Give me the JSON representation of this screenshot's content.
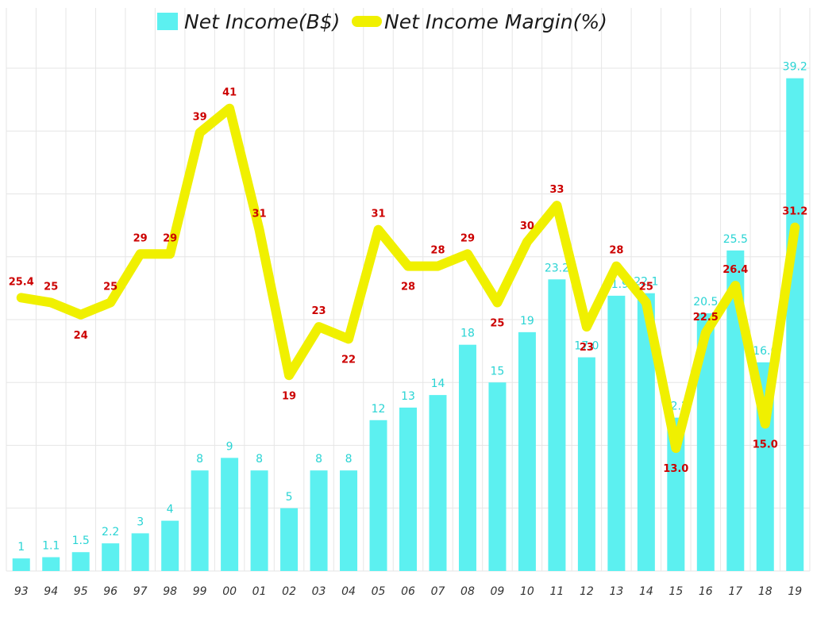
{
  "chart_data": {
    "type": "bar",
    "categories": [
      "93",
      "94",
      "95",
      "96",
      "97",
      "98",
      "99",
      "00",
      "01",
      "02",
      "03",
      "04",
      "05",
      "06",
      "07",
      "08",
      "09",
      "10",
      "11",
      "12",
      "13",
      "14",
      "15",
      "16",
      "17",
      "18",
      "19"
    ],
    "series": [
      {
        "name": "Net Income(B$)",
        "type": "bar",
        "axis": "left",
        "color": "#5cf0f0",
        "values": [
          1,
          1.1,
          1.5,
          2.2,
          3,
          4,
          8,
          9,
          8,
          5,
          8,
          8,
          12,
          13,
          14,
          18,
          15,
          19,
          23.2,
          17.0,
          21.9,
          22.1,
          12.2,
          20.5,
          25.5,
          16.6,
          39.2
        ],
        "labels": [
          "1",
          "1.1",
          "1.5",
          "2.2",
          "3",
          "4",
          "8",
          "9",
          "8",
          "5",
          "8",
          "8",
          "12",
          "13",
          "14",
          "18",
          "15",
          "19",
          "23.2",
          "17.0",
          "21.9",
          "22.1",
          "12.2",
          "20.5",
          "25.5",
          "16.6",
          "39.2"
        ]
      },
      {
        "name": "Net Income Margin(%)",
        "type": "line",
        "axis": "right",
        "color": "#f0f000",
        "label_color": "#cc0000",
        "values": [
          25.4,
          25,
          24,
          25,
          29,
          29,
          39,
          41,
          31,
          19,
          23,
          22,
          31,
          28,
          28,
          29,
          25,
          30,
          33,
          23,
          28,
          25,
          13.0,
          22.5,
          26.4,
          15.0,
          31.2
        ],
        "labels": [
          "25.4",
          "25",
          "24",
          "25",
          "29",
          "29",
          "39",
          "41",
          "31",
          "19",
          "23",
          "22",
          "31",
          "28",
          "28",
          "29",
          "25",
          "30",
          "33",
          "23",
          "28",
          "25",
          "13.0",
          "22.5",
          "26.4",
          "15.0",
          "31.2"
        ]
      }
    ],
    "y_left_range": [
      0,
      40
    ],
    "y_right_range": [
      0,
      45
    ],
    "grid": true,
    "legend_position": "top-center"
  }
}
